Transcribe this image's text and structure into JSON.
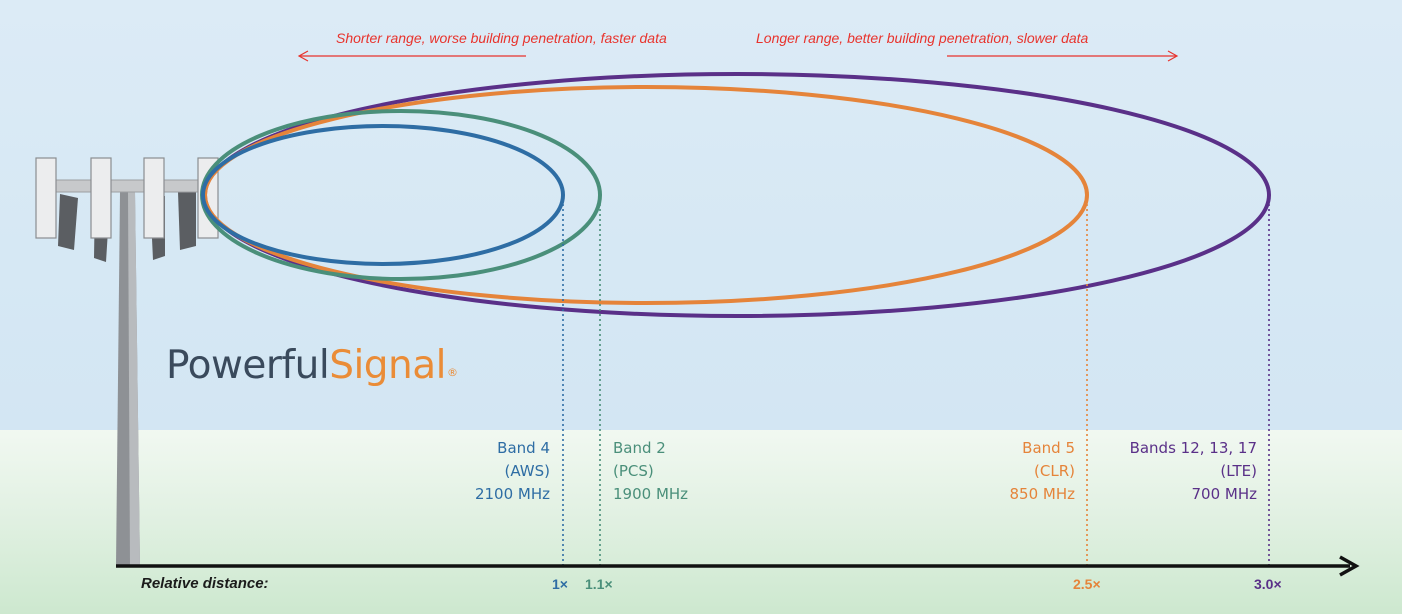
{
  "captions": {
    "left": "Shorter range, worse building penetration, faster data",
    "right": "Longer range, better building penetration, slower data"
  },
  "logo": {
    "part1": "Powerful",
    "part2": "Signal",
    "mark": "®"
  },
  "bands": [
    {
      "id": "band4",
      "line1": "Band 4",
      "line2": "(AWS)",
      "line3": "2100 MHz",
      "tick": "1×",
      "color": "#2e6da4"
    },
    {
      "id": "band2",
      "line1": "Band 2",
      "line2": "(PCS)",
      "line3": "1900 MHz",
      "tick": "1.1×",
      "color": "#4a8f7a"
    },
    {
      "id": "band5",
      "line1": "Band 5",
      "line2": "(CLR)",
      "line3": "850 MHz",
      "tick": "2.5×",
      "color": "#e5843a"
    },
    {
      "id": "lte",
      "line1": "Bands 12, 13, 17",
      "line2": "(LTE)",
      "line3": "700 MHz",
      "tick": "3.0×",
      "color": "#5a3088"
    }
  ],
  "axis": {
    "title": "Relative distance:"
  },
  "colors": {
    "arrow": "#e8332d",
    "axis": "#111111",
    "tower": "#8a8d90",
    "logo_dark": "#3a4a5c",
    "logo_accent": "#ea8c37"
  }
}
